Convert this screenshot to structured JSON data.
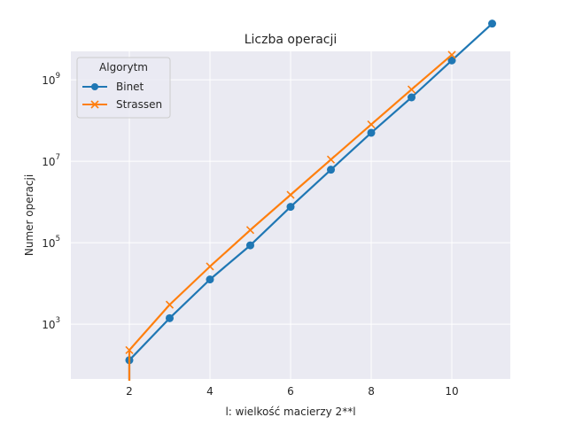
{
  "chart_data": {
    "type": "line",
    "title": "Liczba operacji",
    "xlabel": "l: wielkość macierzy 2**l",
    "ylabel": "Numer operacji",
    "y_scale": "log",
    "xlim": [
      0.55,
      11.45
    ],
    "ylim": [
      45,
      5000000000
    ],
    "x_ticks": [
      2,
      4,
      6,
      8,
      10
    ],
    "y_ticks": [
      {
        "value": 1000,
        "base": "10",
        "exp": "3"
      },
      {
        "value": 100000,
        "base": "10",
        "exp": "5"
      },
      {
        "value": 10000000,
        "base": "10",
        "exp": "7"
      },
      {
        "value": 1000000000,
        "base": "10",
        "exp": "9"
      }
    ],
    "grid": true,
    "legend": {
      "title": "Algorytm",
      "position": "top-left"
    },
    "series": [
      {
        "name": "Binet",
        "color": "#1f77b4",
        "marker": "circle",
        "x": [
          2,
          3,
          4,
          5,
          6,
          7,
          8,
          9,
          10,
          11
        ],
        "y": [
          130,
          1400,
          12500,
          86000,
          760000,
          6200000,
          50000000,
          370000000,
          3000000000,
          24000000000
        ]
      },
      {
        "name": "Strassen",
        "color": "#ff7f0e",
        "marker": "x",
        "x": [
          2,
          3,
          4,
          5,
          6,
          7,
          8,
          9,
          10
        ],
        "y": [
          230,
          3000,
          26000,
          205000,
          1500000,
          11000000,
          80000000,
          580000000,
          4100000000
        ]
      }
    ]
  }
}
